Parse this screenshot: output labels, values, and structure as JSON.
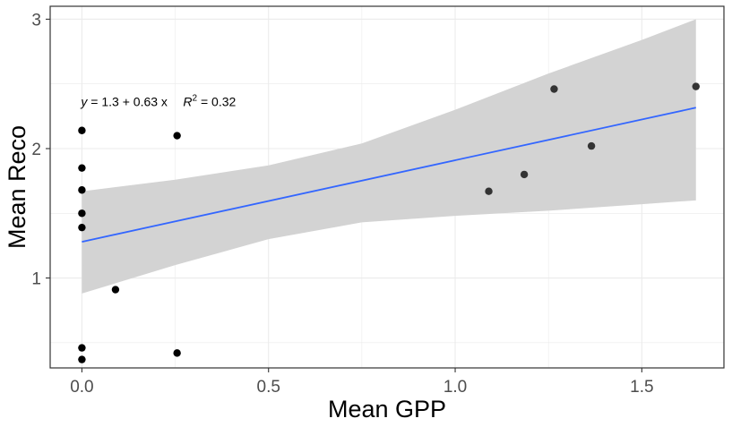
{
  "chart_data": {
    "type": "scatter",
    "xlabel": "Mean GPP",
    "ylabel": "Mean Reco",
    "xlim": [
      -0.085,
      1.72
    ],
    "ylim": [
      0.305,
      3.1
    ],
    "x_ticks": [
      0.0,
      0.5,
      1.0,
      1.5
    ],
    "x_tick_labels": [
      "0.0",
      "0.5",
      "1.0",
      "1.5"
    ],
    "y_ticks": [
      1,
      2,
      3
    ],
    "y_tick_labels": [
      "1",
      "2",
      "3"
    ],
    "grid": true,
    "points": [
      {
        "x": 0.0,
        "y": 2.14
      },
      {
        "x": 0.0,
        "y": 1.85
      },
      {
        "x": 0.0,
        "y": 1.68
      },
      {
        "x": 0.0,
        "y": 1.5
      },
      {
        "x": 0.0,
        "y": 1.39
      },
      {
        "x": 0.0,
        "y": 0.46
      },
      {
        "x": 0.0,
        "y": 0.37
      },
      {
        "x": 0.09,
        "y": 0.91
      },
      {
        "x": 0.255,
        "y": 2.1
      },
      {
        "x": 0.255,
        "y": 0.42
      },
      {
        "x": 1.09,
        "y": 1.67
      },
      {
        "x": 1.185,
        "y": 1.8
      },
      {
        "x": 1.265,
        "y": 2.46
      },
      {
        "x": 1.365,
        "y": 2.02
      },
      {
        "x": 1.645,
        "y": 2.48
      }
    ],
    "fit": {
      "x_range": [
        0.0,
        1.645
      ],
      "band": [
        {
          "x": 0.0,
          "lower": 0.88,
          "upper": 1.67
        },
        {
          "x": 0.25,
          "lower": 1.1,
          "upper": 1.76
        },
        {
          "x": 0.5,
          "lower": 1.3,
          "upper": 1.87
        },
        {
          "x": 0.75,
          "lower": 1.43,
          "upper": 2.04
        },
        {
          "x": 1.0,
          "lower": 1.48,
          "upper": 2.3
        },
        {
          "x": 1.25,
          "lower": 1.52,
          "upper": 2.58
        },
        {
          "x": 1.5,
          "lower": 1.57,
          "upper": 2.84
        },
        {
          "x": 1.645,
          "lower": 1.6,
          "upper": 3.0
        }
      ]
    },
    "annotation": {
      "eq_y": "y",
      "eq_rest": " = 1.3 + 0.63 x",
      "r2_r": "R",
      "r2_sup": "2",
      "r2_rest": " = 0.32",
      "x": 0.0,
      "y": 2.33
    },
    "colors": {
      "points": "#000000",
      "line": "#3366ff",
      "band": "#d3d3d3",
      "grid": "#ebebeb",
      "border": "#333333",
      "tick_label": "#4d4d4d"
    }
  }
}
